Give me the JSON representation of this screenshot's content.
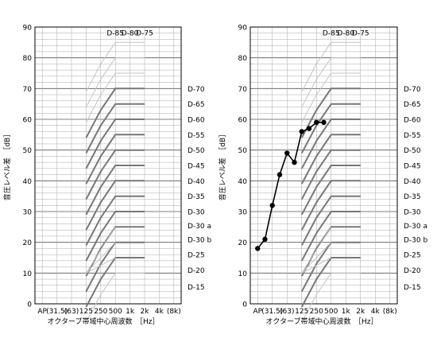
{
  "chart_data": [
    {
      "type": "line",
      "panel": "left",
      "xlabel": "オクターブ帯域中心周波数　［Hz］",
      "ylabel": "音圧レベル差　［dB］",
      "x_ticks": [
        "AP",
        "(31.5)",
        "(63)",
        "125",
        "250",
        "500",
        "1k",
        "2k",
        "4k",
        "(8k)"
      ],
      "ylim": [
        0,
        90
      ],
      "y_ticks": [
        0,
        10,
        20,
        30,
        40,
        50,
        60,
        70,
        80,
        90
      ],
      "d_curve_labels_top": [
        "D-85",
        "D-80",
        "D-75"
      ],
      "d_curve_labels_right": [
        "D-70",
        "D-65",
        "D-60",
        "D-55",
        "D-50",
        "D-45",
        "D-40",
        "D-35",
        "D-30",
        "D-30 a",
        "D-30 b",
        "D-25",
        "D-20",
        "D-15"
      ],
      "series": []
    },
    {
      "type": "line",
      "panel": "right",
      "xlabel": "オクターブ帯域中心周波数　［Hz］",
      "ylabel": "音圧レベル差　［dB］",
      "x_ticks": [
        "AP",
        "(31.5)",
        "(63)",
        "125",
        "250",
        "500",
        "1k",
        "2k",
        "4k",
        "(8k)"
      ],
      "ylim": [
        0,
        90
      ],
      "y_ticks": [
        0,
        10,
        20,
        30,
        40,
        50,
        60,
        70,
        80,
        90
      ],
      "d_curve_labels_top": [
        "D-85",
        "D-80",
        "D-75"
      ],
      "d_curve_labels_right": [
        "D-70",
        "D-65",
        "D-60",
        "D-55",
        "D-50",
        "D-45",
        "D-40",
        "D-35",
        "D-30",
        "D-30 a",
        "D-30 b",
        "D-25",
        "D-20",
        "D-15"
      ],
      "series": [
        {
          "x": [
            0.5,
            1,
            1.5,
            2,
            2.5,
            3,
            3.5,
            4,
            4.5,
            5
          ],
          "y": [
            18,
            21,
            32,
            42,
            49,
            46,
            56,
            57,
            59,
            59
          ],
          "marker": "filled-circle",
          "color": "#000000"
        }
      ]
    }
  ]
}
